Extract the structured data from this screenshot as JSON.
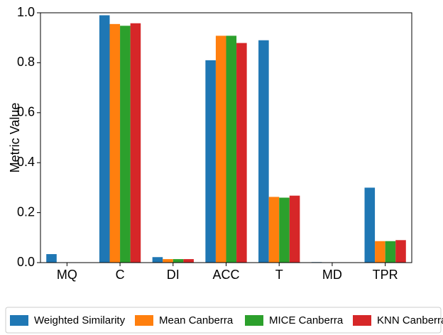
{
  "chart_data": {
    "type": "bar",
    "ylabel": "Metric Value",
    "categories": [
      "MQ",
      "C",
      "DI",
      "ACC",
      "T",
      "MD",
      "TPR"
    ],
    "series": [
      {
        "name": "Weighted Similarity",
        "color": "#1f77b4",
        "values": [
          0.034,
          0.99,
          0.022,
          0.81,
          0.89,
          0.002,
          0.3
        ]
      },
      {
        "name": "Mean Canberra",
        "color": "#ff7f0e",
        "values": [
          0,
          0.955,
          0.014,
          0.908,
          0.263,
          0,
          0.086
        ]
      },
      {
        "name": "MICE Canberra",
        "color": "#2ca02c",
        "values": [
          0,
          0.948,
          0.014,
          0.908,
          0.26,
          0,
          0.086
        ]
      },
      {
        "name": "KNN Canberra",
        "color": "#d62728",
        "values": [
          0,
          0.958,
          0.014,
          0.879,
          0.268,
          0,
          0.09
        ]
      }
    ],
    "ylim": [
      0,
      1
    ],
    "yticks": [
      {
        "value": 0,
        "label": "0.0"
      },
      0.2,
      0.4,
      0.6,
      0.8,
      {
        "value": 1,
        "label": "1.0"
      }
    ],
    "legend": "bottom"
  }
}
